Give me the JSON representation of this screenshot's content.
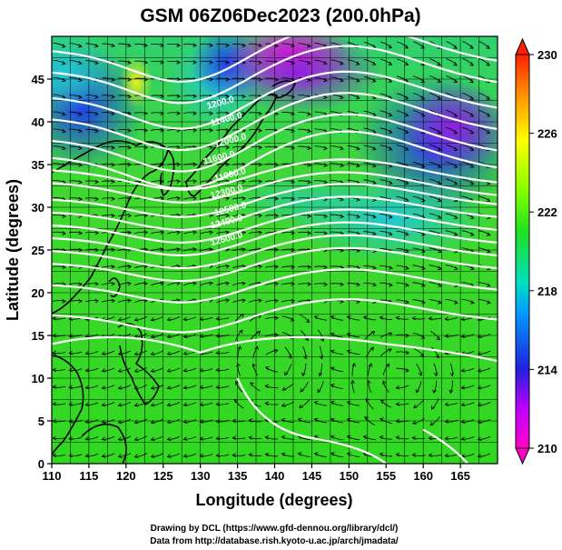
{
  "title": "GSM 06Z06Dec2023 (200.0hPa)",
  "x_axis": {
    "label": "Longitude (degrees)",
    "ticks": [
      "110",
      "115",
      "120",
      "125",
      "130",
      "135",
      "140",
      "145",
      "150",
      "155",
      "160",
      "165"
    ],
    "range": [
      110,
      170
    ]
  },
  "y_axis": {
    "label": "Latitude  (degrees)",
    "ticks": [
      "0",
      "5",
      "10",
      "15",
      "20",
      "25",
      "30",
      "35",
      "40",
      "45"
    ],
    "range": [
      0,
      50
    ]
  },
  "colorbar": {
    "ticks": [
      "210",
      "214",
      "218",
      "222",
      "226",
      "230"
    ],
    "range": [
      210,
      230
    ],
    "colors": [
      "#ff00c8",
      "#c000ff",
      "#2020e0",
      "#00a0ff",
      "#00e0c0",
      "#20e020",
      "#80ff00",
      "#ffff00",
      "#ff9000",
      "#ff2000"
    ]
  },
  "contour_labels": [
    "1200.0",
    "11400.0",
    "12000.0",
    "11600.0",
    "11900.0",
    "12300.0",
    "12500.0",
    "12400.0",
    "12500.0"
  ],
  "credits": {
    "line1": "Drawing by DCL (https://www.gfd-dennou.org/library/dcl/)",
    "line2": "Data from http://database.rish.kyoto-u.ac.jp/arch/jmadata/"
  },
  "colors": {
    "contour": "#ffffff",
    "coast": "#000000",
    "grid": "#000000",
    "stream": "#000000"
  }
}
